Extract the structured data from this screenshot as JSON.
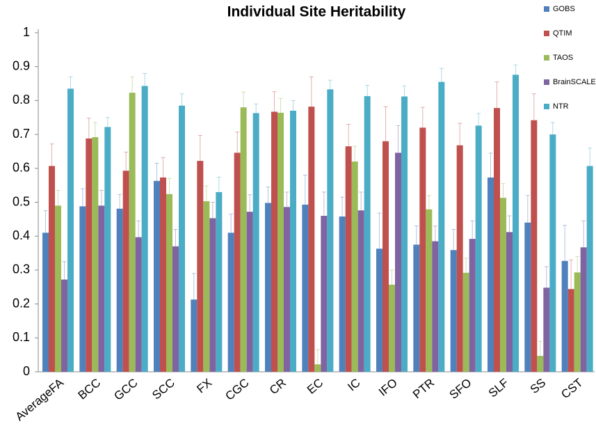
{
  "chart_data": {
    "type": "bar",
    "title": "Individual Site Heritability",
    "categories": [
      "AverageFA",
      "BCC",
      "GCC",
      "SCC",
      "FX",
      "CGC",
      "CR",
      "EC",
      "IC",
      "IFO",
      "PTR",
      "SFO",
      "SLF",
      "SS",
      "CST"
    ],
    "series": [
      {
        "name": "GOBS",
        "color": "#4f81bd",
        "values": [
          0.41,
          0.488,
          0.481,
          0.563,
          0.213,
          0.41,
          0.498,
          0.493,
          0.458,
          0.363,
          0.375,
          0.359,
          0.573,
          0.44,
          0.327
        ],
        "errors": [
          0.065,
          0.052,
          0.042,
          0.052,
          0.077,
          0.055,
          0.047,
          0.087,
          0.057,
          0.105,
          0.055,
          0.061,
          0.072,
          0.08,
          0.105
        ]
      },
      {
        "name": "QTIM",
        "color": "#c0504d",
        "values": [
          0.607,
          0.688,
          0.593,
          0.573,
          0.622,
          0.646,
          0.767,
          0.782,
          0.665,
          0.68,
          0.72,
          0.668,
          0.778,
          0.742,
          0.244
        ],
        "errors": [
          0.065,
          0.06,
          0.055,
          0.059,
          0.075,
          0.061,
          0.059,
          0.088,
          0.065,
          0.102,
          0.06,
          0.065,
          0.077,
          0.078,
          0.086
        ]
      },
      {
        "name": "TAOS",
        "color": "#9bbb59",
        "values": [
          0.49,
          0.692,
          0.823,
          0.524,
          0.503,
          0.78,
          0.764,
          0.022,
          0.62,
          0.257,
          0.479,
          0.292,
          0.513,
          0.047,
          0.293
        ],
        "errors": [
          0.045,
          0.043,
          0.047,
          0.046,
          0.045,
          0.045,
          0.042,
          0.043,
          0.045,
          0.043,
          0.041,
          0.043,
          0.042,
          0.043,
          0.047
        ]
      },
      {
        "name": "BrainSCALE",
        "color": "#8064a2",
        "values": [
          0.272,
          0.49,
          0.397,
          0.37,
          0.453,
          0.472,
          0.486,
          0.46,
          0.476,
          0.646,
          0.385,
          0.392,
          0.412,
          0.248,
          0.367
        ],
        "errors": [
          0.053,
          0.045,
          0.048,
          0.05,
          0.047,
          0.05,
          0.044,
          0.07,
          0.054,
          0.08,
          0.045,
          0.053,
          0.048,
          0.062,
          0.078
        ]
      },
      {
        "name": "NTR",
        "color": "#4bacc6",
        "values": [
          0.835,
          0.722,
          0.843,
          0.785,
          0.53,
          0.763,
          0.77,
          0.833,
          0.813,
          0.812,
          0.855,
          0.726,
          0.876,
          0.7,
          0.607
        ],
        "errors": [
          0.035,
          0.028,
          0.037,
          0.035,
          0.044,
          0.027,
          0.03,
          0.027,
          0.032,
          0.031,
          0.04,
          0.036,
          0.029,
          0.035,
          0.053
        ]
      }
    ],
    "ylim": [
      0,
      1
    ],
    "yticks": [
      0,
      0.1,
      0.2,
      0.3,
      0.4,
      0.5,
      0.6,
      0.7,
      0.8,
      0.9,
      1
    ],
    "grid": false,
    "legend": "top-right"
  }
}
